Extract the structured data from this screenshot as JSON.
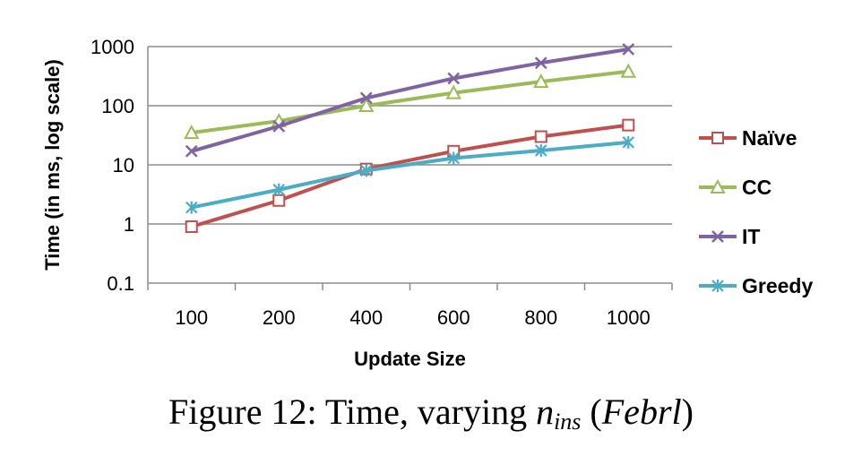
{
  "chart_data": {
    "type": "line",
    "categories": [
      "100",
      "200",
      "400",
      "600",
      "800",
      "1000"
    ],
    "series": [
      {
        "name": "Naïve",
        "values": [
          0.9,
          2.5,
          8.5,
          17,
          30,
          47
        ],
        "color": "#c0504d",
        "marker": "square"
      },
      {
        "name": "CC",
        "values": [
          35,
          55,
          100,
          165,
          255,
          380
        ],
        "color": "#9bbb59",
        "marker": "triangle"
      },
      {
        "name": "IT",
        "values": [
          17,
          45,
          135,
          290,
          530,
          900
        ],
        "color": "#8064a2",
        "marker": "x"
      },
      {
        "name": "Greedy",
        "values": [
          1.9,
          3.8,
          8.0,
          13,
          17.5,
          24
        ],
        "color": "#4bacc6",
        "marker": "star"
      }
    ],
    "title": "",
    "xlabel": "Update Size",
    "ylabel": "Time (in ms, log scale)",
    "yscale": "log",
    "ylim": [
      0.1,
      1000
    ],
    "yticks": [
      "0.1",
      "1",
      "10",
      "100",
      "1000"
    ],
    "grid": "horizontal",
    "legend": "right"
  },
  "caption": {
    "prefix": "Figure 12: Time, varying ",
    "var": "n",
    "sub": "ins",
    "open": " (",
    "dataset": "Febrl",
    "close": ")"
  }
}
